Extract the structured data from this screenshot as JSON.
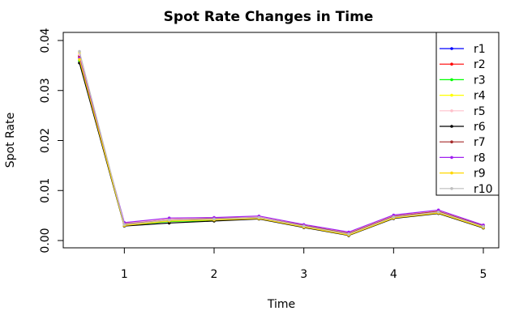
{
  "chart_data": {
    "type": "line",
    "title": "Spot Rate Changes in Time",
    "xlabel": "Time",
    "ylabel": "Spot Rate",
    "xlim": [
      0.5,
      5.0
    ],
    "ylim": [
      0.0,
      0.04
    ],
    "x_ticks": [
      "1",
      "2",
      "3",
      "4",
      "5"
    ],
    "y_ticks": [
      "0.00",
      "0.01",
      "0.02",
      "0.03",
      "0.04"
    ],
    "legend_position": "top-right",
    "grid": false,
    "x": [
      0.5,
      1.0,
      1.5,
      2.0,
      2.5,
      3.0,
      3.5,
      4.0,
      4.5,
      5.0
    ],
    "series": [
      {
        "name": "r1",
        "color": "#0000ff",
        "values": [
          0.037,
          0.0032,
          0.0041,
          0.0043,
          0.0046,
          0.003,
          0.0014,
          0.0048,
          0.0058,
          0.0029
        ]
      },
      {
        "name": "r2",
        "color": "#ff0000",
        "values": [
          0.0368,
          0.0033,
          0.0042,
          0.0044,
          0.0047,
          0.0031,
          0.0015,
          0.0049,
          0.0059,
          0.003
        ]
      },
      {
        "name": "r3",
        "color": "#00ff00",
        "values": [
          0.036,
          0.003,
          0.0038,
          0.004,
          0.0044,
          0.0027,
          0.0011,
          0.0045,
          0.0055,
          0.0026
        ]
      },
      {
        "name": "r4",
        "color": "#ffff00",
        "values": [
          0.0375,
          0.0031,
          0.004,
          0.0042,
          0.0045,
          0.0028,
          0.0012,
          0.0046,
          0.0056,
          0.0027
        ]
      },
      {
        "name": "r5",
        "color": "#ffc0cb",
        "values": [
          0.0372,
          0.0034,
          0.0043,
          0.0045,
          0.0048,
          0.0031,
          0.0016,
          0.005,
          0.006,
          0.0031
        ]
      },
      {
        "name": "r6",
        "color": "#000000",
        "values": [
          0.0355,
          0.0029,
          0.0035,
          0.0039,
          0.0043,
          0.0026,
          0.001,
          0.0044,
          0.0054,
          0.0025
        ]
      },
      {
        "name": "r7",
        "color": "#a52a2a",
        "values": [
          0.0366,
          0.0033,
          0.0041,
          0.0044,
          0.0046,
          0.003,
          0.0014,
          0.0048,
          0.0058,
          0.0029
        ]
      },
      {
        "name": "r8",
        "color": "#a020f0",
        "values": [
          0.0365,
          0.0036,
          0.0045,
          0.0046,
          0.0049,
          0.0032,
          0.0017,
          0.0051,
          0.0061,
          0.0031
        ]
      },
      {
        "name": "r9",
        "color": "#ffd700",
        "values": [
          0.0362,
          0.003,
          0.0039,
          0.0041,
          0.0044,
          0.0027,
          0.0011,
          0.0045,
          0.0055,
          0.0026
        ]
      },
      {
        "name": "r10",
        "color": "#bebebe",
        "values": [
          0.0378,
          0.0032,
          0.0041,
          0.0043,
          0.0046,
          0.0029,
          0.0013,
          0.0047,
          0.0057,
          0.0028
        ]
      }
    ]
  }
}
